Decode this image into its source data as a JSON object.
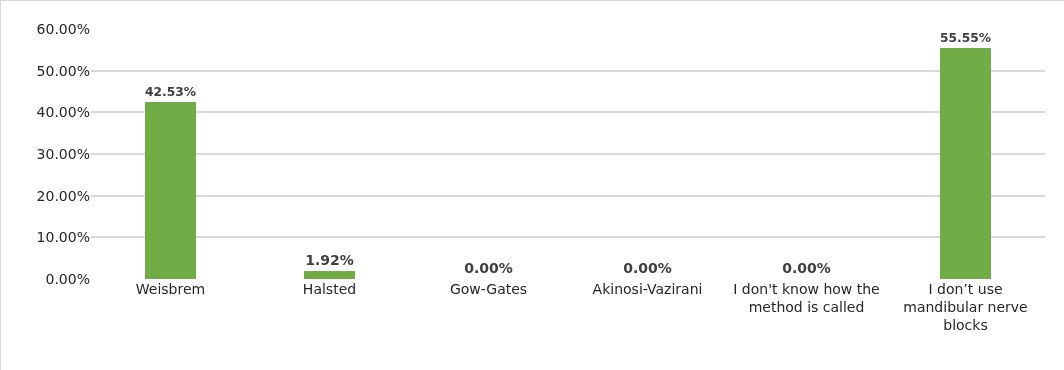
{
  "chart_data": {
    "type": "bar",
    "categories": [
      "Weisbrem",
      "Halsted",
      "Gow-Gates",
      "Akinosi-Vazirani",
      "I don't know how the method is called",
      "I don’t use mandibular nerve blocks"
    ],
    "values": [
      42.53,
      1.92,
      0,
      0,
      0,
      55.55
    ],
    "value_labels": [
      "42.53%",
      "1.92%",
      "0.00%",
      "0.00%",
      "0.00%",
      "55.55%"
    ],
    "color": "#70ad47",
    "ylim": [
      0,
      60
    ],
    "yticks": [
      {
        "value": 0,
        "label": "0.00%"
      },
      {
        "value": 10,
        "label": "10.00%"
      },
      {
        "value": 20,
        "label": "20.00%"
      },
      {
        "value": 30,
        "label": "30.00%"
      },
      {
        "value": 40,
        "label": "40.00%"
      },
      {
        "value": 50,
        "label": "50.00%"
      },
      {
        "value": 60,
        "label": "60.00%"
      }
    ],
    "grid": "y"
  }
}
